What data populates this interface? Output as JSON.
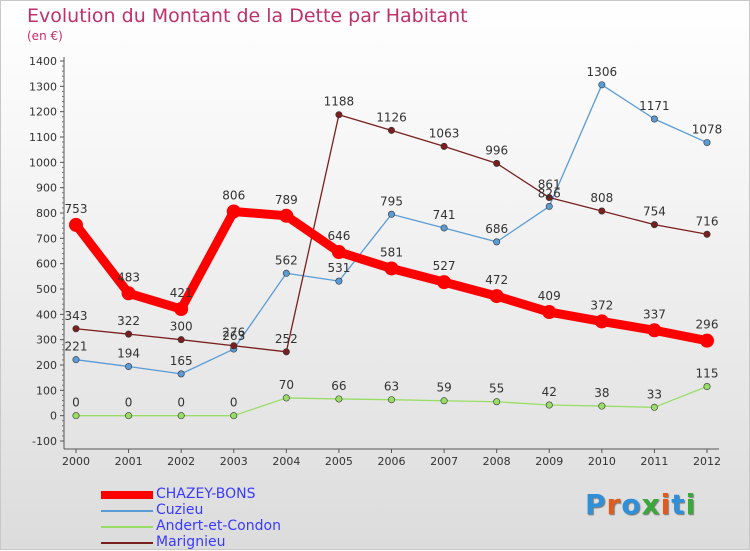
{
  "header": {
    "title": "Evolution du Montant de la Dette par Habitant",
    "subtitle": "(en €)"
  },
  "logo": {
    "text": "Proxiti",
    "letter_colors": [
      "#2f8fd8",
      "#e05b20",
      "#2f8fd8",
      "#3aa83a",
      "#e05b20",
      "#2f8fd8",
      "#3aa83a"
    ]
  },
  "chart_data": {
    "type": "line",
    "title": "Evolution du Montant de la Dette par Habitant",
    "subtitle": "(en €)",
    "x": [
      "2000",
      "2001",
      "2002",
      "2003",
      "2004",
      "2005",
      "2006",
      "2007",
      "2008",
      "2009",
      "2010",
      "2011",
      "2012"
    ],
    "y_ticks": [
      "-100",
      "0",
      "100",
      "200",
      "300",
      "400",
      "500",
      "600",
      "700",
      "800",
      "900",
      "1000",
      "1100",
      "1200",
      "1300",
      "1400"
    ],
    "ylim": [
      -100,
      1400
    ],
    "grid": false,
    "legend_position": "bottom-left",
    "series": [
      {
        "name": "CHAZEY-BONS",
        "color": "#ff0000",
        "values": [
          753,
          483,
          421,
          806,
          789,
          646,
          581,
          527,
          472,
          409,
          372,
          337,
          296
        ]
      },
      {
        "name": "Cuzieu",
        "color": "#5b9bd5",
        "values": [
          221,
          194,
          165,
          263,
          562,
          531,
          795,
          741,
          686,
          826,
          1306,
          1171,
          1078
        ]
      },
      {
        "name": "Andert-et-Condon",
        "color": "#99dd66",
        "values": [
          0,
          0,
          0,
          0,
          70,
          66,
          63,
          59,
          55,
          42,
          38,
          33,
          115
        ]
      },
      {
        "name": "Marignieu",
        "color": "#7a1f1f",
        "values": [
          343,
          322,
          300,
          276,
          252,
          1188,
          1126,
          1063,
          996,
          861,
          808,
          754,
          716
        ]
      }
    ]
  }
}
